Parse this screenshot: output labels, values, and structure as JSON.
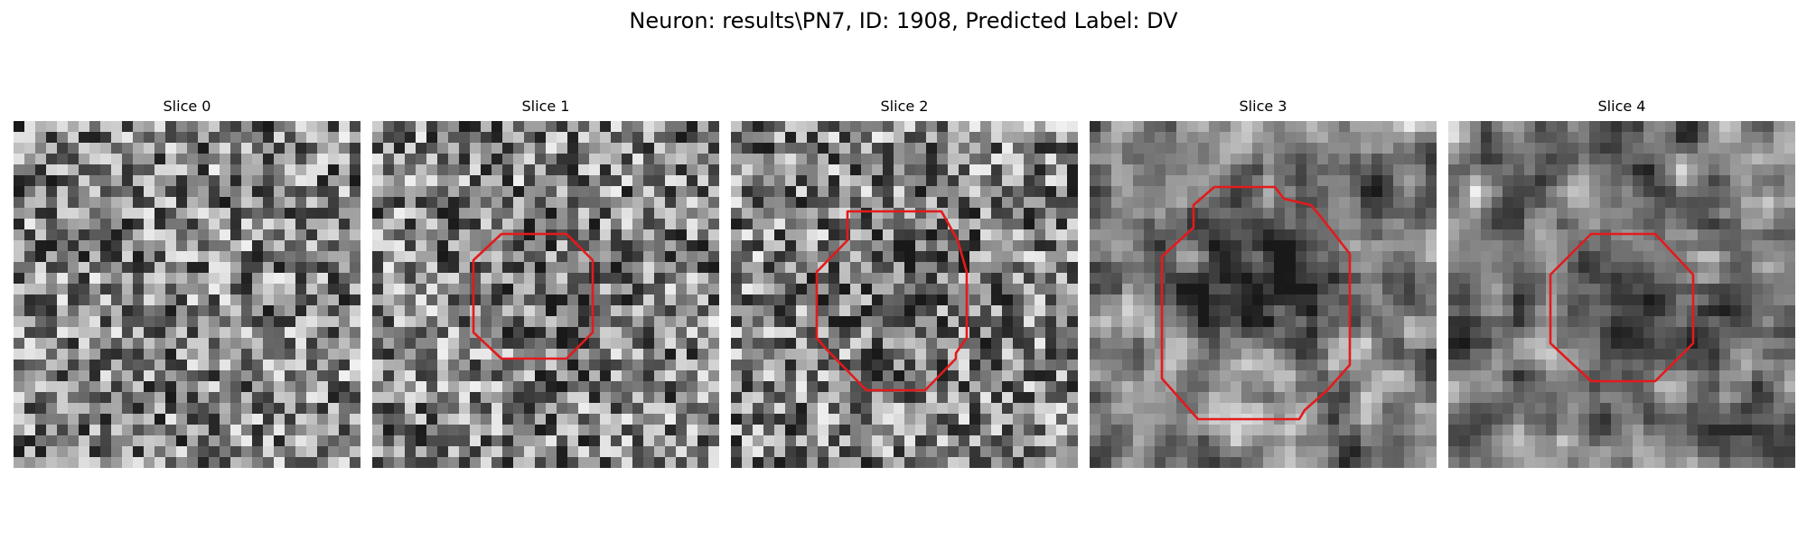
{
  "figure": {
    "title": "Neuron: results\\PN7, ID: 1908, Predicted Label: DV"
  },
  "colors": {
    "background": "#ffffff",
    "contour": "#e31a1c"
  },
  "panels": [
    {
      "title": "Slice 0",
      "seed": 11,
      "blur": 0,
      "dark_center": 0.0,
      "has_contour": false
    },
    {
      "title": "Slice 1",
      "seed": 23,
      "blur": 0,
      "dark_center": 0.12,
      "has_contour": true
    },
    {
      "title": "Slice 2",
      "seed": 37,
      "blur": 0,
      "dark_center": 0.18,
      "has_contour": true
    },
    {
      "title": "Slice 3",
      "seed": 41,
      "blur": 1,
      "dark_center": 0.45,
      "has_contour": true
    },
    {
      "title": "Slice 4",
      "seed": 53,
      "blur": 1,
      "dark_center": 0.22,
      "has_contour": true
    }
  ]
}
